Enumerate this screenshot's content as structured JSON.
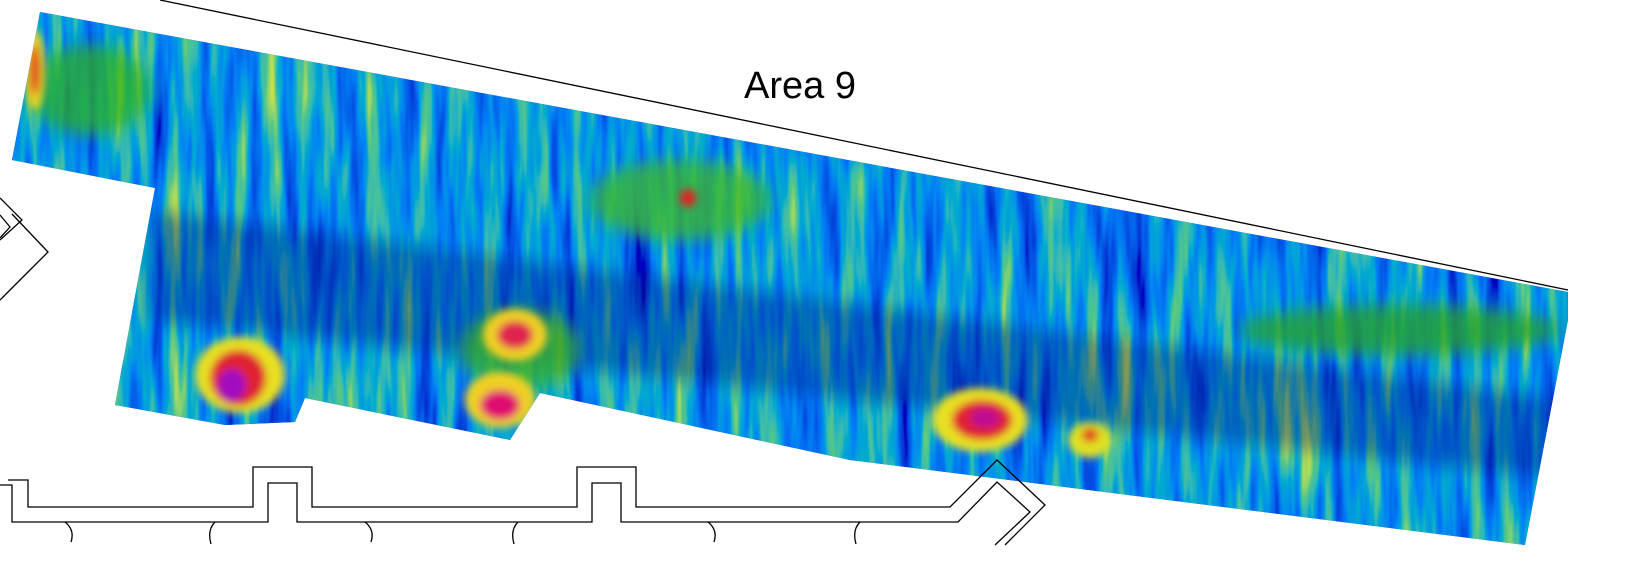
{
  "map": {
    "label": "Area 9"
  }
}
